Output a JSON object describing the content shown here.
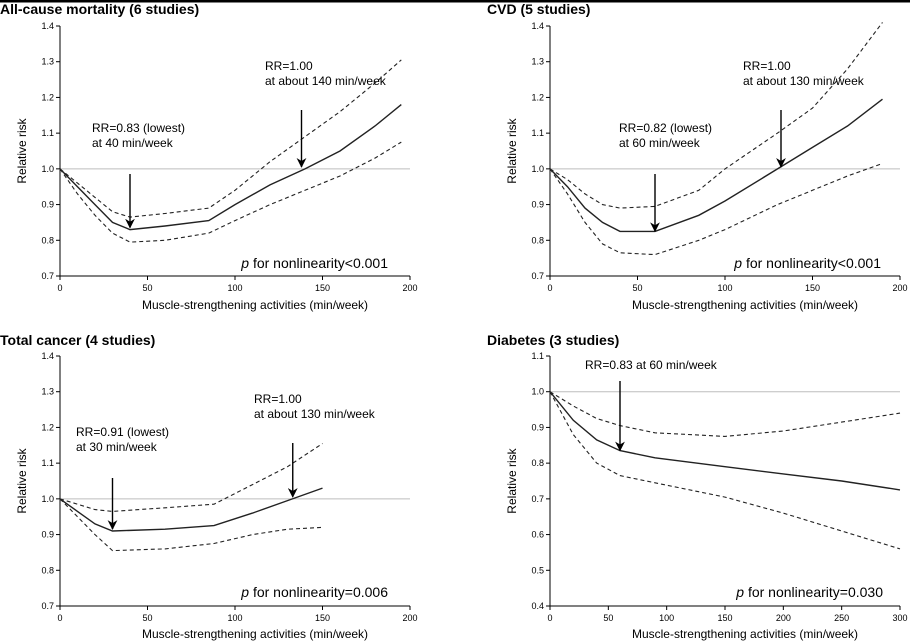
{
  "chart_data": [
    {
      "type": "line",
      "title": "All-cause mortality (6 studies)",
      "xlabel": "Muscle-strengthening activities (min/week)",
      "ylabel": "Relative risk",
      "xlim": [
        0,
        200
      ],
      "ylim": [
        0.7,
        1.4
      ],
      "xticks": [
        0,
        50,
        100,
        150,
        200
      ],
      "yticks": [
        0.7,
        0.8,
        0.9,
        1.0,
        1.1,
        1.2,
        1.3,
        1.4
      ],
      "reference_line": 1.0,
      "series": [
        {
          "role": "estimate",
          "style": "solid",
          "points": [
            [
              0,
              1.0
            ],
            [
              10,
              0.95
            ],
            [
              20,
              0.9
            ],
            [
              30,
              0.85
            ],
            [
              40,
              0.83
            ],
            [
              60,
              0.84
            ],
            [
              85,
              0.855
            ],
            [
              100,
              0.9
            ],
            [
              120,
              0.955
            ],
            [
              140,
              1.0
            ],
            [
              160,
              1.05
            ],
            [
              180,
              1.12
            ],
            [
              195,
              1.18
            ]
          ]
        },
        {
          "role": "upper_ci",
          "style": "dashed",
          "points": [
            [
              0,
              1.0
            ],
            [
              10,
              0.96
            ],
            [
              20,
              0.92
            ],
            [
              30,
              0.88
            ],
            [
              40,
              0.865
            ],
            [
              60,
              0.875
            ],
            [
              85,
              0.89
            ],
            [
              100,
              0.94
            ],
            [
              120,
              1.02
            ],
            [
              140,
              1.09
            ],
            [
              160,
              1.16
            ],
            [
              180,
              1.24
            ],
            [
              195,
              1.305
            ]
          ]
        },
        {
          "role": "lower_ci",
          "style": "dashed",
          "points": [
            [
              0,
              1.0
            ],
            [
              10,
              0.93
            ],
            [
              20,
              0.87
            ],
            [
              30,
              0.82
            ],
            [
              40,
              0.795
            ],
            [
              60,
              0.8
            ],
            [
              85,
              0.82
            ],
            [
              100,
              0.855
            ],
            [
              120,
              0.9
            ],
            [
              140,
              0.94
            ],
            [
              160,
              0.98
            ],
            [
              180,
              1.03
            ],
            [
              195,
              1.075
            ]
          ]
        }
      ],
      "annotations": [
        {
          "lines": [
            "RR=1.00",
            "at about 140 min/week"
          ],
          "arrow_to": [
            138,
            1.0
          ]
        },
        {
          "lines": [
            "RR=0.83 (lowest)",
            "at 40 min/week"
          ],
          "arrow_to": [
            40,
            0.83
          ]
        }
      ],
      "p_text": {
        "p": "p",
        "rest": " for nonlinearity<0.001"
      }
    },
    {
      "type": "line",
      "title": "CVD (5 studies)",
      "xlabel": "Muscle-strengthening activities (min/week)",
      "ylabel": "Relative risk",
      "xlim": [
        0,
        200
      ],
      "ylim": [
        0.7,
        1.4
      ],
      "xticks": [
        0,
        50,
        100,
        150,
        200
      ],
      "yticks": [
        0.7,
        0.8,
        0.9,
        1.0,
        1.1,
        1.2,
        1.3,
        1.4
      ],
      "reference_line": 1.0,
      "series": [
        {
          "role": "estimate",
          "style": "solid",
          "points": [
            [
              0,
              1.0
            ],
            [
              10,
              0.95
            ],
            [
              20,
              0.89
            ],
            [
              30,
              0.85
            ],
            [
              40,
              0.825
            ],
            [
              60,
              0.825
            ],
            [
              85,
              0.87
            ],
            [
              100,
              0.91
            ],
            [
              130,
              1.0
            ],
            [
              150,
              1.06
            ],
            [
              170,
              1.12
            ],
            [
              190,
              1.195
            ]
          ]
        },
        {
          "role": "upper_ci",
          "style": "dashed",
          "points": [
            [
              0,
              1.0
            ],
            [
              10,
              0.97
            ],
            [
              20,
              0.93
            ],
            [
              30,
              0.9
            ],
            [
              40,
              0.89
            ],
            [
              60,
              0.895
            ],
            [
              85,
              0.94
            ],
            [
              100,
              1.0
            ],
            [
              130,
              1.1
            ],
            [
              150,
              1.17
            ],
            [
              170,
              1.28
            ],
            [
              190,
              1.41
            ]
          ]
        },
        {
          "role": "lower_ci",
          "style": "dashed",
          "points": [
            [
              0,
              1.0
            ],
            [
              10,
              0.93
            ],
            [
              20,
              0.85
            ],
            [
              30,
              0.79
            ],
            [
              40,
              0.765
            ],
            [
              60,
              0.76
            ],
            [
              85,
              0.8
            ],
            [
              100,
              0.83
            ],
            [
              130,
              0.9
            ],
            [
              150,
              0.94
            ],
            [
              170,
              0.98
            ],
            [
              190,
              1.015
            ]
          ]
        }
      ],
      "annotations": [
        {
          "lines": [
            "RR=1.00",
            "at about 130 min/week"
          ],
          "arrow_to": [
            132,
            1.0
          ]
        },
        {
          "lines": [
            "RR=0.82 (lowest)",
            "at 60 min/week"
          ],
          "arrow_to": [
            60,
            0.82
          ]
        }
      ],
      "p_text": {
        "p": "p",
        "rest": " for nonlinearity<0.001"
      }
    },
    {
      "type": "line",
      "title": "Total cancer (4 studies)",
      "xlabel": "Muscle-strengthening activities (min/week)",
      "ylabel": "Relative risk",
      "xlim": [
        0,
        200
      ],
      "ylim": [
        0.7,
        1.4
      ],
      "xticks": [
        0,
        50,
        100,
        150,
        200
      ],
      "yticks": [
        0.7,
        0.8,
        0.9,
        1.0,
        1.1,
        1.2,
        1.3,
        1.4
      ],
      "reference_line": 1.0,
      "series": [
        {
          "role": "estimate",
          "style": "solid",
          "points": [
            [
              0,
              1.0
            ],
            [
              10,
              0.965
            ],
            [
              20,
              0.93
            ],
            [
              30,
              0.91
            ],
            [
              60,
              0.915
            ],
            [
              88,
              0.925
            ],
            [
              110,
              0.96
            ],
            [
              130,
              0.995
            ],
            [
              150,
              1.03
            ]
          ]
        },
        {
          "role": "upper_ci",
          "style": "dashed",
          "points": [
            [
              0,
              1.0
            ],
            [
              10,
              0.985
            ],
            [
              20,
              0.97
            ],
            [
              30,
              0.965
            ],
            [
              60,
              0.975
            ],
            [
              88,
              0.985
            ],
            [
              110,
              1.04
            ],
            [
              130,
              1.09
            ],
            [
              150,
              1.155
            ]
          ]
        },
        {
          "role": "lower_ci",
          "style": "dashed",
          "points": [
            [
              0,
              1.0
            ],
            [
              10,
              0.95
            ],
            [
              20,
              0.9
            ],
            [
              30,
              0.855
            ],
            [
              60,
              0.86
            ],
            [
              88,
              0.875
            ],
            [
              110,
              0.9
            ],
            [
              130,
              0.915
            ],
            [
              150,
              0.92
            ]
          ]
        }
      ],
      "annotations": [
        {
          "lines": [
            "RR=1.00",
            "at about 130 min/week"
          ],
          "arrow_to": [
            133,
            1.0
          ]
        },
        {
          "lines": [
            "RR=0.91 (lowest)",
            "at 30 min/week"
          ],
          "arrow_to": [
            30,
            0.91
          ]
        }
      ],
      "p_text": {
        "p": "p",
        "rest": " for nonlinearity=0.006"
      }
    },
    {
      "type": "line",
      "title": "Diabetes (3 studies)",
      "xlabel": "Muscle-strengthening activities (min/week)",
      "ylabel": "Relative risk",
      "xlim": [
        0,
        300
      ],
      "ylim": [
        0.4,
        1.1
      ],
      "xticks": [
        0,
        50,
        100,
        150,
        200,
        250,
        300
      ],
      "yticks": [
        0.4,
        0.5,
        0.6,
        0.7,
        0.8,
        0.9,
        1.0,
        1.1
      ],
      "reference_line": 1.0,
      "series": [
        {
          "role": "estimate",
          "style": "solid",
          "points": [
            [
              0,
              1.0
            ],
            [
              20,
              0.92
            ],
            [
              40,
              0.865
            ],
            [
              60,
              0.835
            ],
            [
              90,
              0.815
            ],
            [
              150,
              0.79
            ],
            [
              200,
              0.77
            ],
            [
              250,
              0.75
            ],
            [
              300,
              0.725
            ]
          ]
        },
        {
          "role": "upper_ci",
          "style": "dashed",
          "points": [
            [
              0,
              1.0
            ],
            [
              20,
              0.96
            ],
            [
              40,
              0.925
            ],
            [
              60,
              0.905
            ],
            [
              90,
              0.885
            ],
            [
              150,
              0.875
            ],
            [
              200,
              0.89
            ],
            [
              250,
              0.915
            ],
            [
              300,
              0.94
            ]
          ]
        },
        {
          "role": "lower_ci",
          "style": "dashed",
          "points": [
            [
              0,
              1.0
            ],
            [
              20,
              0.88
            ],
            [
              40,
              0.8
            ],
            [
              60,
              0.765
            ],
            [
              90,
              0.745
            ],
            [
              150,
              0.705
            ],
            [
              200,
              0.66
            ],
            [
              250,
              0.61
            ],
            [
              300,
              0.56
            ]
          ]
        }
      ],
      "annotations": [
        {
          "lines": [
            "RR=0.83 at 60 min/week"
          ],
          "arrow_to": [
            60,
            0.83
          ]
        }
      ],
      "p_text": {
        "p": "p",
        "rest": " for nonlinearity=0.030"
      }
    }
  ]
}
